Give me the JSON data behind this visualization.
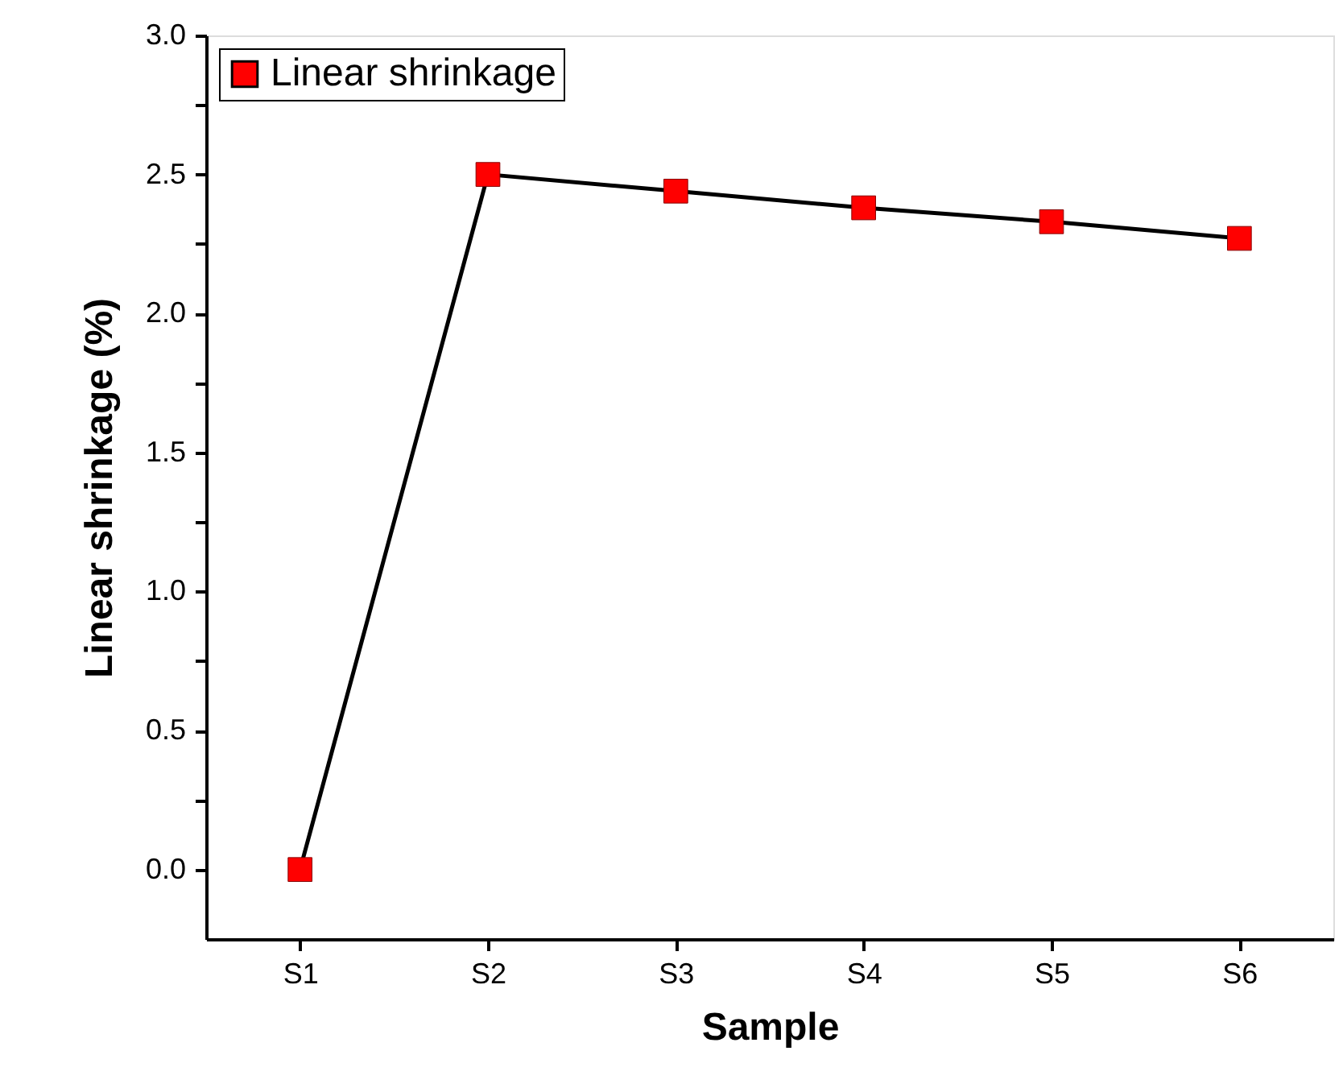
{
  "chart_data": {
    "type": "line",
    "xlabel": "Sample",
    "ylabel": "Linear shrinkage (%)",
    "categories": [
      "S1",
      "S2",
      "S3",
      "S4",
      "S5",
      "S6"
    ],
    "series": [
      {
        "name": "Linear shrinkage",
        "color": "#ff0000",
        "values": [
          0.0,
          2.5,
          2.44,
          2.38,
          2.33,
          2.27
        ]
      }
    ],
    "ylim": [
      -0.25,
      3.0
    ],
    "yticks": [
      {
        "value": 0,
        "label": "0.0"
      },
      {
        "value": 0.25,
        "label": null
      },
      {
        "value": 0.5,
        "label": "0.5"
      },
      {
        "value": 0.75,
        "label": null
      },
      {
        "value": 1,
        "label": "1.0"
      },
      {
        "value": 1.25,
        "label": null
      },
      {
        "value": 1.5,
        "label": "1.5"
      },
      {
        "value": 1.75,
        "label": null
      },
      {
        "value": 2,
        "label": "2.0"
      },
      {
        "value": 2.25,
        "label": null
      },
      {
        "value": 2.5,
        "label": "2.5"
      },
      {
        "value": 2.75,
        "label": null
      },
      {
        "value": 3,
        "label": "3.0"
      }
    ],
    "grid": false,
    "legend": "top left",
    "marker": "square",
    "line_style": "solid"
  }
}
